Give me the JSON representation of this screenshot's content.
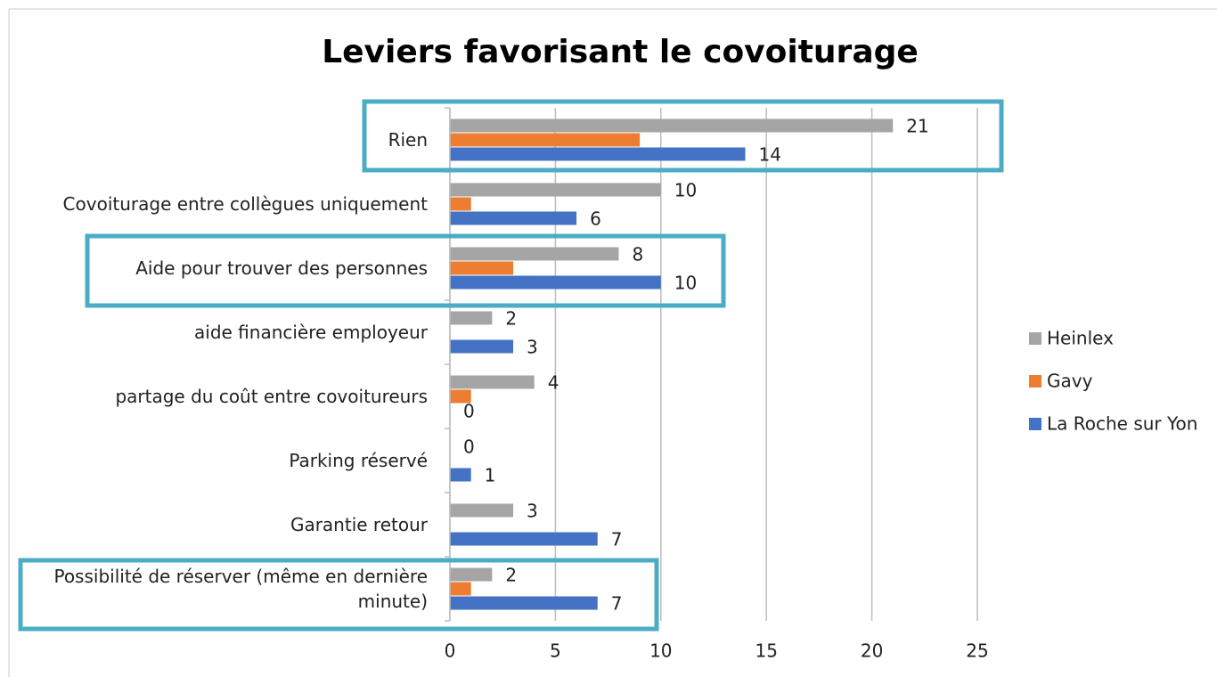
{
  "chart_data": {
    "type": "hbar",
    "title": "Leviers favorisant le covoiturage",
    "categories": [
      "Rien",
      "Covoiturage entre collègues uniquement",
      "Aide pour trouver des personnes",
      "aide financière employeur",
      "partage du coût entre covoitureurs",
      "Parking réservé",
      "Garantie retour",
      "Possibilité de réserver (même en dernière minute)"
    ],
    "series": [
      {
        "name": "Heinlex",
        "color": "#a5a5a5",
        "data_labels": true,
        "values": [
          21,
          10,
          8,
          2,
          4,
          0,
          3,
          2
        ]
      },
      {
        "name": "Gavy",
        "color": "#ed7d31",
        "data_labels": false,
        "values": [
          9,
          1,
          3,
          0,
          1,
          0,
          0,
          1
        ]
      },
      {
        "name": "La Roche sur Yon",
        "color": "#4472c4",
        "data_labels": true,
        "values": [
          14,
          6,
          10,
          3,
          0,
          1,
          7,
          7
        ]
      }
    ],
    "xlim": [
      0,
      25
    ],
    "xticks": [
      0,
      5,
      10,
      15,
      20,
      25
    ],
    "grid": true,
    "legend": "right"
  }
}
